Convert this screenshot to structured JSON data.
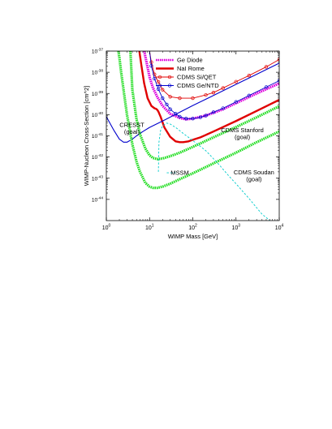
{
  "chart_data": {
    "type": "line",
    "xlabel": "WIMP Mass [GeV]",
    "ylabel": "WIMP-Nucleon Cross-Section [cm^2]",
    "xscale": "log",
    "yscale": "log",
    "xlim": [
      1,
      10000
    ],
    "ylim": [
      1e-45,
      1e-37
    ],
    "x_ticks": [
      {
        "v": 1,
        "base": "10",
        "exp": "0"
      },
      {
        "v": 10,
        "base": "10",
        "exp": "1"
      },
      {
        "v": 100,
        "base": "10",
        "exp": "2"
      },
      {
        "v": 1000,
        "base": "10",
        "exp": "3"
      },
      {
        "v": 10000,
        "base": "10",
        "exp": "4"
      }
    ],
    "y_ticks": [
      {
        "v": 1e-44,
        "base": "10",
        "exp": "-44"
      },
      {
        "v": 1e-43,
        "base": "10",
        "exp": "-43"
      },
      {
        "v": 1e-42,
        "base": "10",
        "exp": "-42"
      },
      {
        "v": 1e-41,
        "base": "10",
        "exp": "-41"
      },
      {
        "v": 1e-40,
        "base": "10",
        "exp": "-40"
      },
      {
        "v": 1e-39,
        "base": "10",
        "exp": "-39"
      },
      {
        "v": 1e-38,
        "base": "10",
        "exp": "-38"
      },
      {
        "v": 1e-37,
        "base": "10",
        "exp": "-37"
      }
    ],
    "legend_position": "top-right",
    "series": [
      {
        "name": "Ge Diode",
        "color": "#dd00dd",
        "style": "dotted-thick",
        "x": [
          7.5,
          8.5,
          10,
          12,
          15,
          20,
          30,
          50,
          70,
          100,
          200,
          500,
          1000,
          3000,
          10000
        ],
        "y": [
          1e-37,
          3e-38,
          6e-39,
          1.8e-39,
          7e-40,
          2.6e-40,
          1.1e-40,
          7e-41,
          6e-41,
          6.5e-41,
          9e-41,
          1.8e-40,
          3.5e-40,
          1e-39,
          3e-39
        ]
      },
      {
        "name": "NaI Rome",
        "color": "#e00000",
        "style": "solid-thick",
        "x": [
          5.8,
          6.5,
          7.5,
          9,
          11,
          13,
          14,
          15,
          16,
          18,
          22,
          30,
          40,
          50,
          60,
          80,
          100,
          150,
          200,
          300,
          500,
          1000,
          3000,
          10000
        ],
        "y": [
          1e-37,
          2e-38,
          3e-39,
          6e-40,
          2.6e-40,
          2e-40,
          1.9e-40,
          1.7e-40,
          1.4e-40,
          8e-41,
          2.5e-41,
          9e-42,
          5.5e-42,
          5e-42,
          5e-42,
          5.5e-42,
          6.5e-42,
          8.5e-42,
          1.1e-41,
          1.6e-41,
          2.6e-41,
          5e-41,
          1.5e-40,
          5e-40
        ]
      },
      {
        "name": "CDMS Si/QET",
        "color": "#e00000",
        "style": "solid-circles",
        "x": [
          10,
          11,
          13,
          16,
          20,
          30,
          50,
          100,
          200,
          300,
          500,
          1000,
          2000,
          5000,
          10000
        ],
        "y": [
          1e-37,
          3e-38,
          8e-39,
          3.5e-39,
          1.5e-39,
          7e-40,
          6e-40,
          6e-40,
          8.5e-40,
          1.1e-39,
          1.8e-39,
          3.6e-39,
          7e-39,
          1.8e-38,
          4e-38
        ]
      },
      {
        "name": "CDMS Ge/NTD",
        "color": "#0000cc",
        "style": "solid-circles",
        "x": [
          10,
          11,
          13,
          16,
          20,
          25,
          30,
          40,
          50,
          70,
          100,
          150,
          200,
          300,
          500,
          1000,
          2000,
          5000,
          10000
        ],
        "y": [
          1e-37,
          2e-38,
          5e-39,
          1.6e-39,
          6e-40,
          3e-40,
          1.8e-40,
          1.1e-40,
          8e-41,
          6.5e-41,
          6.5e-41,
          7.5e-41,
          9e-41,
          1.3e-40,
          2e-40,
          4e-40,
          8e-40,
          2e-39,
          4e-39
        ]
      },
      {
        "name": "",
        "color": "#0000cc",
        "style": "solid",
        "x": [
          1,
          1.5,
          2,
          2.5,
          3,
          4,
          5,
          7,
          10,
          20,
          50,
          100,
          300,
          1000,
          3000,
          10000
        ],
        "y": [
          8e-41,
          1.8e-41,
          7e-42,
          5e-42,
          5e-42,
          7e-42,
          1e-41,
          1.6e-41,
          2.5e-41,
          5e-41,
          1.3e-40,
          2.7e-40,
          8e-40,
          2.7e-39,
          8e-39,
          2.7e-38
        ]
      },
      {
        "name": "CDMS Stanford (goal)",
        "color": "#22dd22",
        "style": "dotted-thick",
        "x": [
          3.6,
          4,
          5,
          6,
          8,
          10,
          12,
          15,
          20,
          30,
          50,
          100,
          300,
          1000,
          3000,
          10000
        ],
        "y": [
          1e-37,
          1.5e-39,
          6e-41,
          1.2e-41,
          2.5e-42,
          1.2e-42,
          9e-43,
          8e-43,
          8.5e-43,
          1.1e-42,
          1.6e-42,
          3e-42,
          8.5e-42,
          2.6e-41,
          7.5e-41,
          2.5e-40
        ]
      },
      {
        "name": "CDMS Soudan (goal)",
        "color": "#22dd22",
        "style": "dotted-thick",
        "x": [
          1.9,
          2,
          2.2,
          2.5,
          3,
          4,
          5,
          6,
          8,
          10,
          12,
          15,
          20,
          30,
          50,
          100,
          300,
          1000,
          3000,
          10000
        ],
        "y": [
          1e-37,
          5e-38,
          1e-38,
          1.5e-39,
          1e-40,
          4e-42,
          6e-43,
          2e-43,
          6e-44,
          4e-44,
          3.5e-44,
          3.5e-44,
          4e-44,
          5.5e-44,
          9e-44,
          1.7e-43,
          5e-43,
          1.6e-42,
          5e-42,
          1.6e-41
        ]
      },
      {
        "name": "",
        "color": "#00cccc",
        "style": "dashed",
        "x": [
          16,
          16.5,
          18,
          20,
          25,
          30,
          40,
          60,
          100,
          200,
          400,
          700,
          1000,
          2000,
          4000,
          7000,
          10000
        ],
        "y": [
          2e-43,
          5e-42,
          1.8e-41,
          3e-41,
          4e-41,
          3.6e-41,
          2.5e-41,
          1.3e-41,
          6e-42,
          2e-42,
          4.5e-43,
          1.2e-43,
          5.5e-44,
          1.1e-44,
          2e-45,
          8e-46,
          5e-46
        ]
      },
      {
        "name": "",
        "color": "#00cccc",
        "style": "dashed",
        "x": [
          25,
          40
        ],
        "y": [
          1.8e-43,
          1.8e-43
        ]
      }
    ],
    "annotations": [
      {
        "lines": [
          "CRESST",
          "(goal)"
        ],
        "x": 3.9,
        "y": 2.6e-41
      },
      {
        "lines": [
          "MSSM"
        ],
        "x": 50,
        "y": 1.45e-43
      },
      {
        "lines": [
          "CDMS Stanford",
          "(goal)"
        ],
        "x": 1400,
        "y": 1.5e-41
      },
      {
        "lines": [
          "CDMS Soudan",
          "(goal)"
        ],
        "x": 2600,
        "y": 1.5e-43
      }
    ]
  }
}
